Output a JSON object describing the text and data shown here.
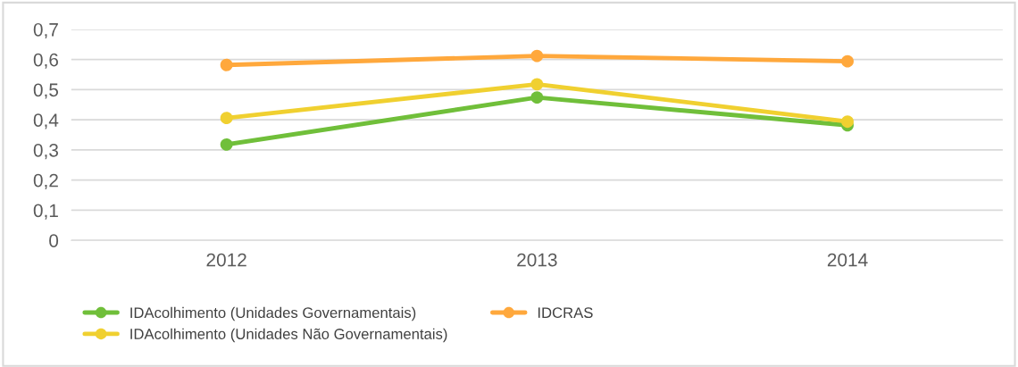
{
  "chart_data": {
    "type": "line",
    "categories": [
      "2012",
      "2013",
      "2014"
    ],
    "series": [
      {
        "name": "IDAcolhimento (Unidades Governamentais)",
        "color": "#70bf3a",
        "values": [
          0.318,
          0.474,
          0.382
        ]
      },
      {
        "name": "IDAcolhimento (Unidades Não Governamentais)",
        "color": "#f0d030",
        "values": [
          0.406,
          0.518,
          0.394
        ]
      },
      {
        "name": "IDCRAS",
        "color": "#ffa83c",
        "values": [
          0.582,
          0.612,
          0.594
        ]
      }
    ],
    "ylim": [
      0,
      0.7
    ],
    "yticks": [
      {
        "value": 0,
        "label": "0"
      },
      {
        "value": 0.1,
        "label": "0,1"
      },
      {
        "value": 0.2,
        "label": "0,2"
      },
      {
        "value": 0.3,
        "label": "0,3"
      },
      {
        "value": 0.4,
        "label": "0,4"
      },
      {
        "value": 0.5,
        "label": "0,5"
      },
      {
        "value": 0.6,
        "label": "0,6"
      },
      {
        "value": 0.7,
        "label": "0,7"
      }
    ],
    "grid": "y",
    "legend": "bottom",
    "marker": "circle",
    "line_style": "solid"
  }
}
